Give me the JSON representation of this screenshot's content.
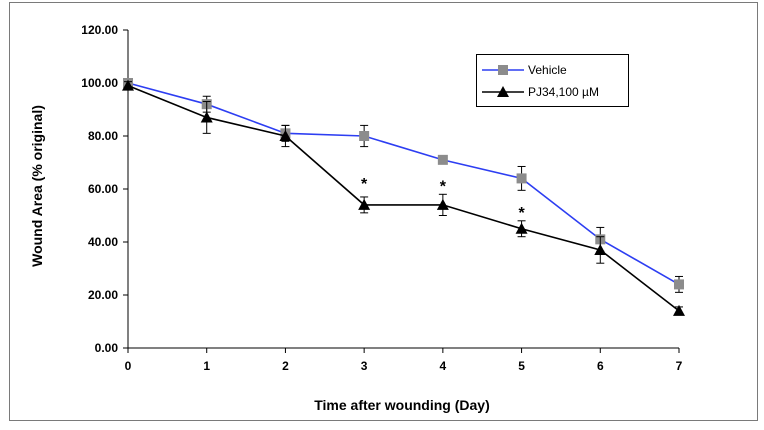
{
  "chart_data": {
    "type": "line",
    "title": "",
    "xlabel": "Time after wounding (Day)",
    "ylabel": "Wound Area (% original)",
    "xlim": [
      0,
      7
    ],
    "ylim": [
      0,
      120
    ],
    "x": [
      0,
      1,
      2,
      3,
      4,
      5,
      6,
      7
    ],
    "x_tick_labels": [
      "0",
      "1",
      "2",
      "3",
      "4",
      "5",
      "6",
      "7"
    ],
    "y_ticks": [
      0,
      20,
      40,
      60,
      80,
      100,
      120
    ],
    "y_tick_labels": [
      "0.00",
      "20.00",
      "40.00",
      "60.00",
      "80.00",
      "100.00",
      "120.00"
    ],
    "grid": false,
    "legend_position": "top-right",
    "series": [
      {
        "name": "Vehicle",
        "color": "#2d3ef2",
        "marker": "square",
        "marker_color": "#8c8c8c",
        "values": [
          100,
          92,
          81,
          80,
          71,
          64,
          41,
          24
        ],
        "errors": [
          1.5,
          3,
          3,
          4,
          1,
          4.5,
          4.5,
          3
        ]
      },
      {
        "name": "PJ34,100 µM",
        "color": "#000000",
        "marker": "triangle",
        "marker_color": "#000000",
        "values": [
          99,
          87,
          80,
          54,
          54,
          45,
          37,
          14
        ],
        "errors": [
          1.5,
          6,
          4,
          3,
          4,
          3,
          5,
          1.5
        ]
      }
    ],
    "annotations": [
      {
        "text": "*",
        "x": 3,
        "y": 63
      },
      {
        "text": "*",
        "x": 4,
        "y": 62
      },
      {
        "text": "*",
        "x": 5,
        "y": 52
      }
    ]
  }
}
